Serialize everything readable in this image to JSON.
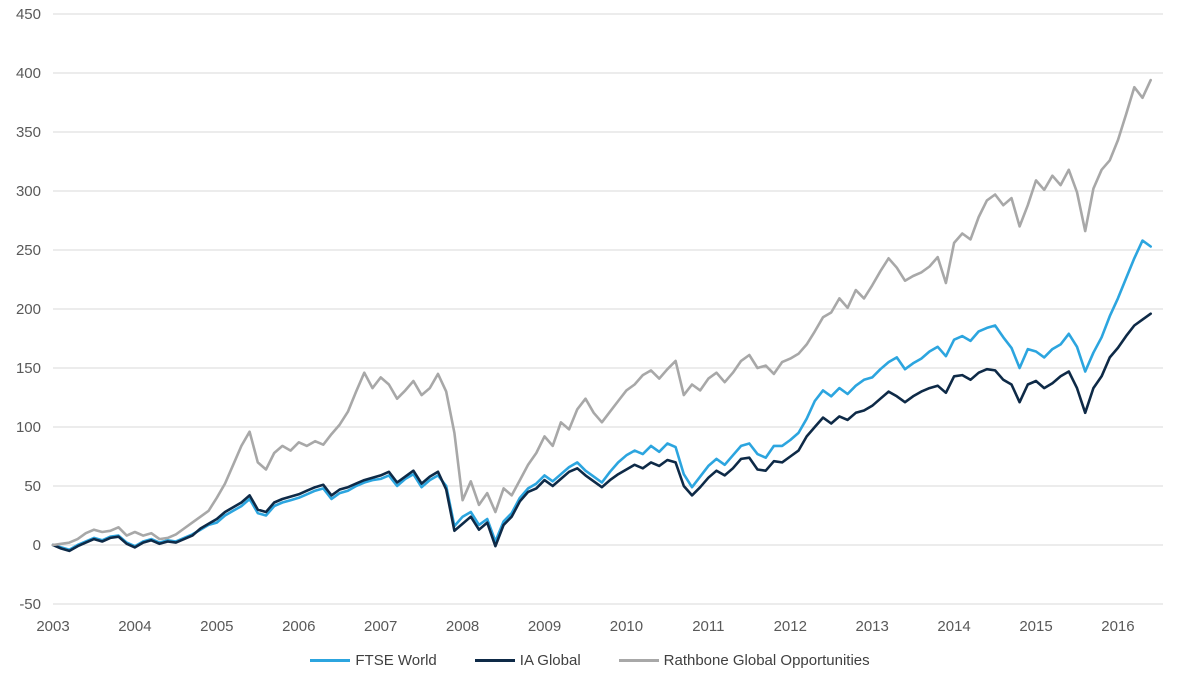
{
  "chart_data": {
    "type": "line",
    "title": "",
    "xlabel": "",
    "ylabel": "",
    "grid": "horizontal",
    "legend_position": "bottom",
    "xlim": [
      2003.0,
      2016.55
    ],
    "ylim": [
      -50,
      450
    ],
    "y_ticks": [
      -50,
      0,
      50,
      100,
      150,
      200,
      250,
      300,
      350,
      400,
      450
    ],
    "x_axis_labels": [
      "2003",
      "2004",
      "2005",
      "2006",
      "2007",
      "2008",
      "2009",
      "2010",
      "2011",
      "2012",
      "2013",
      "2014",
      "2015",
      "2016"
    ],
    "x_start": 2003.0,
    "x_step": 0.1,
    "axis_color": "#d9d9d9",
    "tick_label_color": "#595959",
    "series": [
      {
        "name": "FTSE World",
        "color": "#2ca5df",
        "values": [
          0,
          -2,
          -4,
          0,
          3,
          6,
          4,
          7,
          8,
          2,
          -1,
          3,
          5,
          2,
          4,
          3,
          6,
          9,
          13,
          17,
          19,
          25,
          29,
          33,
          39,
          27,
          25,
          33,
          36,
          38,
          40,
          43,
          46,
          48,
          39,
          44,
          46,
          50,
          53,
          55,
          56,
          59,
          50,
          56,
          60,
          49,
          55,
          59,
          50,
          16,
          24,
          28,
          17,
          22,
          3,
          20,
          27,
          40,
          48,
          52,
          59,
          54,
          60,
          66,
          70,
          63,
          58,
          53,
          62,
          70,
          76,
          80,
          77,
          84,
          79,
          86,
          83,
          60,
          49,
          58,
          67,
          73,
          68,
          76,
          84,
          86,
          77,
          74,
          84,
          84,
          89,
          95,
          107,
          122,
          131,
          126,
          133,
          128,
          135,
          140,
          142,
          149,
          155,
          159,
          149,
          154,
          158,
          164,
          168,
          160,
          174,
          177,
          173,
          181,
          184,
          186,
          176,
          167,
          150,
          166,
          164,
          159,
          166,
          170,
          179,
          168,
          147,
          163,
          176,
          194,
          209,
          226,
          243,
          258,
          253
        ]
      },
      {
        "name": "IA Global",
        "color": "#0e2a47",
        "values": [
          0,
          -3,
          -5,
          -1,
          2,
          5,
          3,
          6,
          7,
          1,
          -2,
          2,
          4,
          1,
          3,
          2,
          5,
          8,
          14,
          18,
          22,
          28,
          32,
          36,
          42,
          30,
          28,
          36,
          39,
          41,
          43,
          46,
          49,
          51,
          42,
          47,
          49,
          52,
          55,
          57,
          59,
          62,
          53,
          58,
          63,
          52,
          58,
          62,
          47,
          12,
          18,
          24,
          13,
          19,
          -1,
          17,
          24,
          37,
          45,
          48,
          55,
          50,
          56,
          62,
          65,
          59,
          54,
          49,
          55,
          60,
          64,
          68,
          65,
          70,
          67,
          72,
          70,
          50,
          42,
          49,
          57,
          63,
          59,
          65,
          73,
          74,
          64,
          63,
          71,
          70,
          75,
          80,
          92,
          100,
          108,
          103,
          109,
          106,
          112,
          114,
          118,
          124,
          130,
          126,
          121,
          126,
          130,
          133,
          135,
          129,
          143,
          144,
          140,
          146,
          149,
          148,
          140,
          136,
          121,
          136,
          139,
          133,
          137,
          143,
          147,
          133,
          112,
          133,
          143,
          159,
          167,
          177,
          186,
          191,
          196
        ]
      },
      {
        "name": "Rathbone Global Opportunities",
        "color": "#a8a8a8",
        "values": [
          0,
          1,
          2,
          5,
          10,
          13,
          11,
          12,
          15,
          8,
          11,
          8,
          10,
          5,
          6,
          9,
          14,
          19,
          24,
          29,
          40,
          52,
          68,
          84,
          96,
          70,
          64,
          78,
          84,
          80,
          87,
          84,
          88,
          85,
          94,
          102,
          113,
          130,
          146,
          133,
          142,
          136,
          124,
          131,
          139,
          127,
          133,
          145,
          130,
          95,
          38,
          54,
          34,
          44,
          28,
          48,
          42,
          55,
          68,
          78,
          92,
          84,
          104,
          98,
          115,
          124,
          112,
          104,
          113,
          122,
          131,
          136,
          144,
          148,
          141,
          149,
          156,
          127,
          136,
          131,
          141,
          146,
          138,
          146,
          156,
          161,
          150,
          152,
          145,
          155,
          158,
          162,
          170,
          181,
          193,
          197,
          209,
          201,
          216,
          209,
          220,
          232,
          243,
          235,
          224,
          228,
          231,
          236,
          244,
          222,
          256,
          264,
          259,
          278,
          292,
          297,
          288,
          294,
          270,
          288,
          309,
          301,
          313,
          305,
          318,
          299,
          266,
          302,
          318,
          326,
          343,
          365,
          388,
          379,
          394
        ]
      }
    ]
  },
  "legend": {
    "items": [
      "FTSE World",
      "IA Global",
      "Rathbone Global Opportunities"
    ]
  }
}
